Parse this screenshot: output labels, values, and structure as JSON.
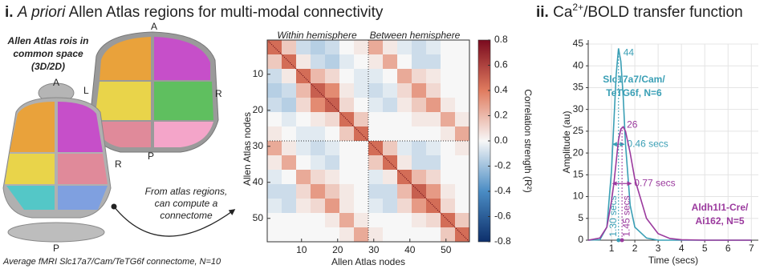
{
  "panel_i": {
    "number": "i.",
    "title_italic": "A priori",
    "title_rest": "Allen Atlas regions for multi-modal connectivity",
    "rois_lines": [
      "Allen Atlas rois in",
      "common space",
      "(3D/2D)"
    ],
    "brain_labels": [
      "A",
      "L",
      "R",
      "P",
      "A",
      "R",
      "P"
    ],
    "arrow_lines": [
      "From atlas regions,",
      "can compute a",
      "connectome"
    ],
    "caption": "Average fMRI Slc17a7/Cam/TeTG6f connectome, N=10",
    "header_left": "Within hemisphere",
    "header_right": "Between hemisphere"
  },
  "panel_ii": {
    "number": "ii.",
    "title_parts": [
      "Ca",
      "2+",
      "/BOLD transfer function"
    ]
  },
  "chart_data": [
    {
      "type": "heatmap",
      "xlabel": "Allen Atlas nodes",
      "ylabel": "Allen Atlas nodes",
      "colorbar_label": "Correlation strength (R²)",
      "xlim": [
        0.5,
        56.5
      ],
      "ylim": [
        0.5,
        56.5
      ],
      "bins": [
        0.5,
        4.5,
        8.5,
        12.5,
        16.5,
        20.5,
        24.5,
        28.5,
        32.5,
        36.5,
        40.5,
        44.5,
        48.5,
        52.5,
        56.5
      ],
      "xticks": [
        10,
        20,
        30,
        40,
        50
      ],
      "yticks": [
        10,
        20,
        30,
        40,
        50
      ],
      "hemisphere_split": 28.5,
      "clim": [
        -0.8,
        0.8
      ],
      "cticks": [
        -0.8,
        -0.6,
        -0.4,
        -0.2,
        0.0,
        0.2,
        0.4,
        0.6,
        0.8
      ],
      "colormap": [
        "#0d2f6b",
        "#4a8cc4",
        "#f7f7f7",
        "#e07b5f",
        "#7a0a1e"
      ],
      "values": [
        [
          0.45,
          0.15,
          -0.1,
          -0.15,
          -0.1,
          0,
          0.05,
          0.25,
          0.05,
          -0.05,
          -0.1,
          -0.05,
          0,
          0
        ],
        [
          0.15,
          0.45,
          0.05,
          -0.1,
          -0.15,
          -0.05,
          0,
          0.05,
          0.25,
          0,
          -0.1,
          -0.1,
          0,
          0
        ],
        [
          -0.1,
          0.05,
          0.45,
          0.2,
          0.1,
          0,
          -0.05,
          -0.05,
          0,
          0.25,
          0.1,
          0.05,
          0,
          0
        ],
        [
          -0.15,
          -0.1,
          0.2,
          0.5,
          0.35,
          0.05,
          -0.05,
          -0.1,
          -0.05,
          0.1,
          0.3,
          0.1,
          0,
          0
        ],
        [
          -0.1,
          -0.15,
          0.1,
          0.35,
          0.5,
          0.1,
          0,
          -0.05,
          -0.1,
          0.05,
          0.15,
          0.3,
          0.05,
          0
        ],
        [
          0,
          -0.05,
          0,
          0.05,
          0.1,
          0.45,
          0.15,
          0,
          0,
          0,
          0.05,
          0.05,
          0.25,
          0.05
        ],
        [
          0.05,
          0,
          -0.05,
          -0.05,
          0,
          0.15,
          0.45,
          0,
          0,
          0,
          0,
          0,
          0.05,
          0.25
        ],
        [
          0.25,
          0.05,
          -0.05,
          -0.1,
          -0.05,
          0,
          0,
          0.45,
          0.15,
          -0.05,
          -0.1,
          -0.05,
          0,
          0.05
        ],
        [
          0.05,
          0.25,
          0,
          -0.05,
          -0.1,
          0,
          0,
          0.15,
          0.45,
          0.05,
          -0.1,
          -0.1,
          0,
          0
        ],
        [
          -0.05,
          0,
          0.25,
          0.1,
          0.05,
          0,
          0,
          -0.05,
          0.05,
          0.45,
          0.2,
          0.1,
          0,
          0
        ],
        [
          -0.1,
          -0.1,
          0.1,
          0.3,
          0.15,
          0.05,
          0,
          -0.1,
          -0.1,
          0.2,
          0.5,
          0.3,
          0.05,
          0
        ],
        [
          -0.05,
          -0.1,
          0.05,
          0.1,
          0.3,
          0.05,
          0,
          -0.05,
          -0.1,
          0.1,
          0.3,
          0.45,
          0.1,
          0
        ],
        [
          0,
          0,
          0,
          0,
          0.05,
          0.25,
          0.05,
          0,
          0,
          0,
          0.05,
          0.1,
          0.45,
          0.15
        ],
        [
          0,
          0,
          0,
          0,
          0,
          0.05,
          0.25,
          0.05,
          0,
          0,
          0,
          0,
          0.15,
          0.45
        ]
      ]
    },
    {
      "type": "line",
      "xlabel": "Time (secs)",
      "ylabel": "Amplitude (au)",
      "xlim": [
        0,
        7.3
      ],
      "ylim": [
        0,
        45
      ],
      "xticks": [
        1,
        2,
        3,
        4,
        5,
        6,
        7
      ],
      "yticks": [
        0,
        5,
        10,
        15,
        20,
        25,
        30,
        35,
        40,
        45
      ],
      "grid": true,
      "x": [
        0,
        0.5,
        0.8,
        1.0,
        1.1,
        1.2,
        1.3,
        1.4,
        1.5,
        1.6,
        1.8,
        2.0,
        2.5,
        3,
        3.5,
        4,
        5,
        6,
        7
      ],
      "series": [
        {
          "label": [
            "Slc17a7/Cam/",
            "TeTG6f, N=6"
          ],
          "color": "#3a9fb5",
          "values": [
            0,
            0.1,
            3,
            16,
            27,
            38,
            44,
            41,
            33,
            22,
            8,
            3,
            0.5,
            0,
            0,
            0,
            0,
            0,
            0
          ],
          "peak": 44,
          "peak_time": 1.3,
          "peak_time_label": "1.30 secs",
          "fwhm": 0.46,
          "fwhm_label": "0.46 secs"
        },
        {
          "label": [
            "Aldh1l1-Cre/",
            "Ai162, N=5"
          ],
          "color": "#9b3a9e",
          "values": [
            0,
            0.5,
            3,
            9,
            13,
            18,
            23,
            25.5,
            26,
            25,
            20,
            14,
            5,
            1.5,
            0.4,
            0.1,
            0,
            0,
            0
          ],
          "peak": 26,
          "peak_time": 1.45,
          "peak_time_label": "1.45 secs",
          "fwhm": 0.77,
          "fwhm_label": "0.77 secs"
        }
      ]
    }
  ]
}
